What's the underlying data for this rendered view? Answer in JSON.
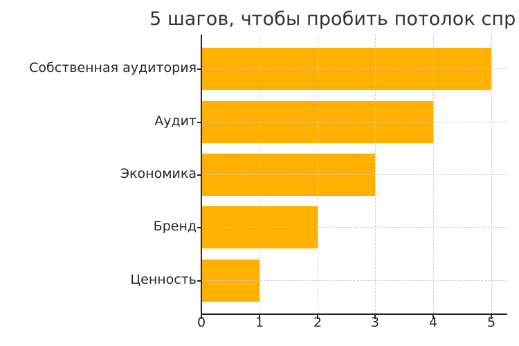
{
  "chart_data": {
    "type": "bar",
    "orientation": "horizontal",
    "title": "5 шагов, чтобы пробить потолок спр",
    "categories": [
      "Собственная аудитория",
      "Аудит",
      "Экономика",
      "Бренд",
      "Ценность"
    ],
    "values": [
      5,
      4,
      3,
      2,
      1
    ],
    "xlabel": "",
    "ylabel": "",
    "xlim": [
      0,
      5.27
    ],
    "xticks": [
      "0",
      "1",
      "2",
      "3",
      "4",
      "5"
    ],
    "grid": true,
    "bar_color": "#FFB000",
    "legend": null
  }
}
